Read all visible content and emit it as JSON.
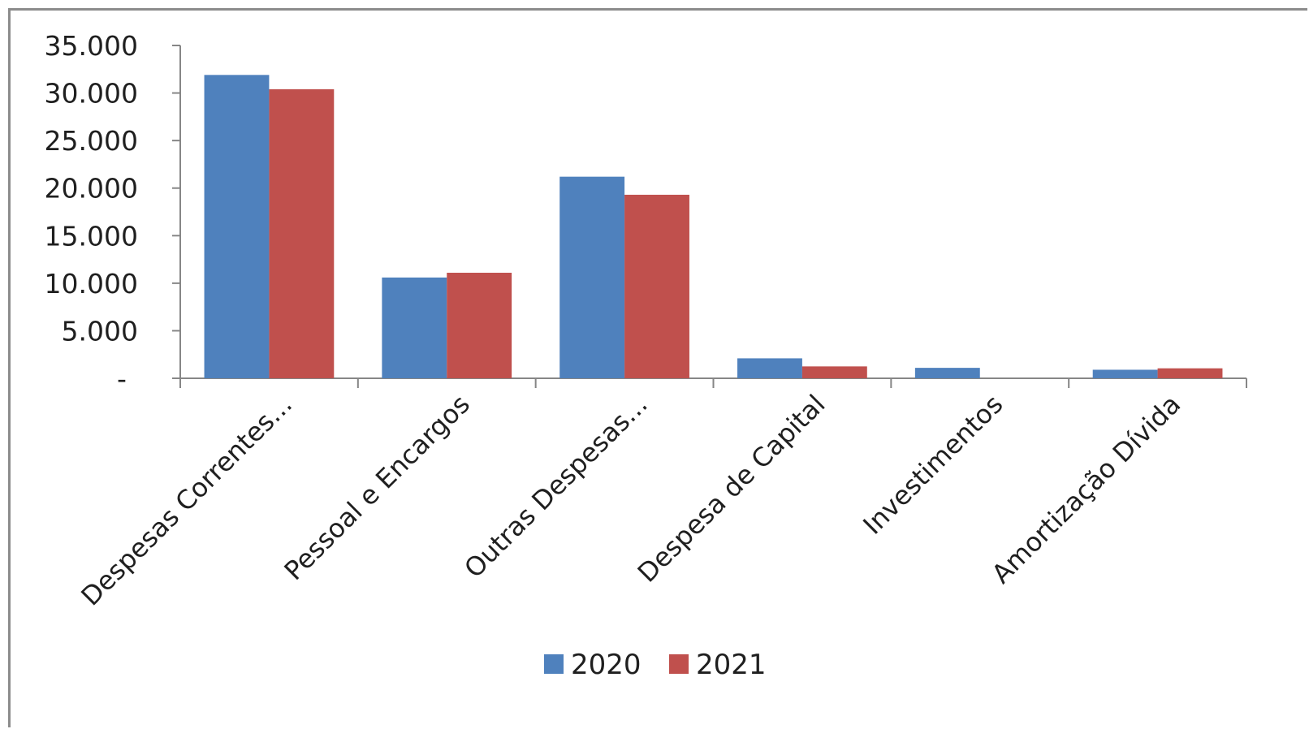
{
  "chart_data": {
    "type": "bar",
    "categories": [
      "Despesas Correntes...",
      "Pessoal e Encargos",
      "Outras Despesas...",
      "Despesa de Capital",
      "Investimentos",
      "Amortização Dívida"
    ],
    "series": [
      {
        "name": "2020",
        "color": "#4f81bd",
        "values": [
          31900,
          10600,
          21200,
          2100,
          1100,
          900
        ]
      },
      {
        "name": "2021",
        "color": "#c0504d",
        "values": [
          30400,
          11100,
          19300,
          1250,
          0,
          1050
        ]
      }
    ],
    "ylim": [
      0,
      35000
    ],
    "yticks": [
      0,
      5000,
      10000,
      15000,
      20000,
      25000,
      30000,
      35000
    ],
    "ytick_labels": [
      "-",
      "5.000",
      "10.000",
      "15.000",
      "20.000",
      "25.000",
      "30.000",
      "35.000"
    ],
    "title": "",
    "xlabel": "",
    "ylabel": "",
    "grid": false,
    "legend_position": "bottom"
  }
}
